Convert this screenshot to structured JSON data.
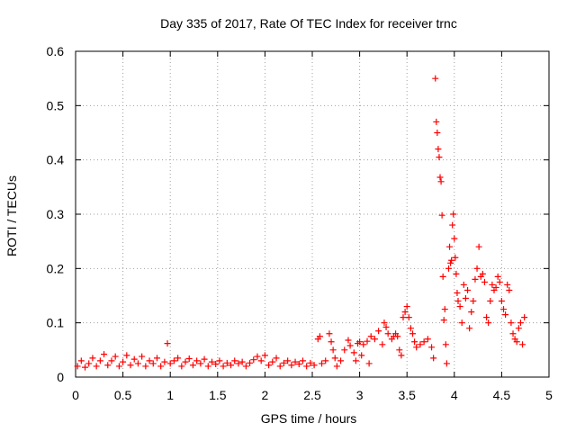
{
  "chart_data": {
    "type": "scatter",
    "title": "Day 335 of 2017, Rate Of TEC Index for receiver trnc",
    "xlabel": "GPS time / hours",
    "ylabel": "ROTI / TECUs",
    "xlim": [
      0,
      5
    ],
    "ylim": [
      0,
      0.6
    ],
    "x_ticks": [
      "0",
      "0.5",
      "1",
      "1.5",
      "2",
      "2.5",
      "3",
      "3.5",
      "4",
      "4.5",
      "5"
    ],
    "y_ticks": [
      "0",
      "0.1",
      "0.2",
      "0.3",
      "0.4",
      "0.5",
      "0.6"
    ],
    "grid": true,
    "marker": "+",
    "series": [
      {
        "name": "ROTI",
        "color": "#ff0000",
        "points": [
          [
            0.02,
            0.02
          ],
          [
            0.06,
            0.03
          ],
          [
            0.1,
            0.018
          ],
          [
            0.14,
            0.025
          ],
          [
            0.18,
            0.035
          ],
          [
            0.22,
            0.02
          ],
          [
            0.26,
            0.03
          ],
          [
            0.3,
            0.042
          ],
          [
            0.34,
            0.022
          ],
          [
            0.38,
            0.03
          ],
          [
            0.42,
            0.038
          ],
          [
            0.46,
            0.02
          ],
          [
            0.5,
            0.028
          ],
          [
            0.54,
            0.04
          ],
          [
            0.58,
            0.022
          ],
          [
            0.62,
            0.033
          ],
          [
            0.66,
            0.025
          ],
          [
            0.7,
            0.038
          ],
          [
            0.74,
            0.02
          ],
          [
            0.78,
            0.03
          ],
          [
            0.82,
            0.025
          ],
          [
            0.86,
            0.035
          ],
          [
            0.9,
            0.02
          ],
          [
            0.94,
            0.028
          ],
          [
            0.97,
            0.062
          ],
          [
            1.0,
            0.025
          ],
          [
            1.04,
            0.03
          ],
          [
            1.08,
            0.035
          ],
          [
            1.12,
            0.02
          ],
          [
            1.16,
            0.028
          ],
          [
            1.2,
            0.034
          ],
          [
            1.24,
            0.022
          ],
          [
            1.28,
            0.03
          ],
          [
            1.32,
            0.025
          ],
          [
            1.36,
            0.033
          ],
          [
            1.4,
            0.02
          ],
          [
            1.44,
            0.028
          ],
          [
            1.48,
            0.024
          ],
          [
            1.52,
            0.03
          ],
          [
            1.56,
            0.02
          ],
          [
            1.6,
            0.026
          ],
          [
            1.64,
            0.022
          ],
          [
            1.68,
            0.03
          ],
          [
            1.72,
            0.025
          ],
          [
            1.76,
            0.028
          ],
          [
            1.8,
            0.02
          ],
          [
            1.84,
            0.026
          ],
          [
            1.88,
            0.032
          ],
          [
            1.92,
            0.038
          ],
          [
            1.96,
            0.03
          ],
          [
            2.0,
            0.04
          ],
          [
            2.04,
            0.022
          ],
          [
            2.08,
            0.028
          ],
          [
            2.12,
            0.035
          ],
          [
            2.16,
            0.02
          ],
          [
            2.2,
            0.026
          ],
          [
            2.24,
            0.03
          ],
          [
            2.28,
            0.022
          ],
          [
            2.32,
            0.028
          ],
          [
            2.36,
            0.024
          ],
          [
            2.4,
            0.03
          ],
          [
            2.44,
            0.02
          ],
          [
            2.48,
            0.026
          ],
          [
            2.52,
            0.022
          ],
          [
            2.56,
            0.07
          ],
          [
            2.58,
            0.075
          ],
          [
            2.6,
            0.025
          ],
          [
            2.64,
            0.03
          ],
          [
            2.68,
            0.08
          ],
          [
            2.7,
            0.065
          ],
          [
            2.72,
            0.05
          ],
          [
            2.74,
            0.035
          ],
          [
            2.76,
            0.02
          ],
          [
            2.8,
            0.03
          ],
          [
            2.84,
            0.05
          ],
          [
            2.88,
            0.068
          ],
          [
            2.9,
            0.058
          ],
          [
            2.94,
            0.045
          ],
          [
            2.96,
            0.03
          ],
          [
            2.98,
            0.062
          ],
          [
            3.0,
            0.065
          ],
          [
            3.02,
            0.04
          ],
          [
            3.04,
            0.06
          ],
          [
            3.08,
            0.066
          ],
          [
            3.1,
            0.025
          ],
          [
            3.12,
            0.075
          ],
          [
            3.16,
            0.07
          ],
          [
            3.2,
            0.085
          ],
          [
            3.24,
            0.06
          ],
          [
            3.26,
            0.1
          ],
          [
            3.28,
            0.092
          ],
          [
            3.3,
            0.08
          ],
          [
            3.34,
            0.07
          ],
          [
            3.36,
            0.075
          ],
          [
            3.38,
            0.08
          ],
          [
            3.4,
            0.075
          ],
          [
            3.42,
            0.05
          ],
          [
            3.44,
            0.04
          ],
          [
            3.46,
            0.11
          ],
          [
            3.48,
            0.12
          ],
          [
            3.5,
            0.13
          ],
          [
            3.52,
            0.11
          ],
          [
            3.54,
            0.09
          ],
          [
            3.56,
            0.08
          ],
          [
            3.58,
            0.065
          ],
          [
            3.6,
            0.055
          ],
          [
            3.64,
            0.06
          ],
          [
            3.68,
            0.065
          ],
          [
            3.72,
            0.07
          ],
          [
            3.76,
            0.055
          ],
          [
            3.78,
            0.035
          ],
          [
            3.8,
            0.55
          ],
          [
            3.81,
            0.47
          ],
          [
            3.82,
            0.45
          ],
          [
            3.83,
            0.42
          ],
          [
            3.84,
            0.405
          ],
          [
            3.85,
            0.368
          ],
          [
            3.86,
            0.36
          ],
          [
            3.87,
            0.298
          ],
          [
            3.88,
            0.185
          ],
          [
            3.89,
            0.105
          ],
          [
            3.9,
            0.125
          ],
          [
            3.91,
            0.06
          ],
          [
            3.92,
            0.025
          ],
          [
            3.94,
            0.2
          ],
          [
            3.95,
            0.24
          ],
          [
            3.96,
            0.21
          ],
          [
            3.97,
            0.215
          ],
          [
            3.98,
            0.28
          ],
          [
            3.99,
            0.3
          ],
          [
            4.0,
            0.255
          ],
          [
            4.01,
            0.22
          ],
          [
            4.02,
            0.19
          ],
          [
            4.03,
            0.155
          ],
          [
            4.04,
            0.14
          ],
          [
            4.06,
            0.13
          ],
          [
            4.08,
            0.1
          ],
          [
            4.1,
            0.17
          ],
          [
            4.12,
            0.145
          ],
          [
            4.14,
            0.16
          ],
          [
            4.16,
            0.09
          ],
          [
            4.18,
            0.12
          ],
          [
            4.2,
            0.14
          ],
          [
            4.22,
            0.18
          ],
          [
            4.24,
            0.2
          ],
          [
            4.26,
            0.24
          ],
          [
            4.28,
            0.185
          ],
          [
            4.3,
            0.19
          ],
          [
            4.32,
            0.175
          ],
          [
            4.34,
            0.11
          ],
          [
            4.36,
            0.1
          ],
          [
            4.38,
            0.14
          ],
          [
            4.4,
            0.17
          ],
          [
            4.42,
            0.16
          ],
          [
            4.44,
            0.165
          ],
          [
            4.46,
            0.185
          ],
          [
            4.48,
            0.175
          ],
          [
            4.5,
            0.14
          ],
          [
            4.52,
            0.125
          ],
          [
            4.54,
            0.115
          ],
          [
            4.56,
            0.17
          ],
          [
            4.58,
            0.16
          ],
          [
            4.6,
            0.1
          ],
          [
            4.62,
            0.08
          ],
          [
            4.64,
            0.07
          ],
          [
            4.66,
            0.065
          ],
          [
            4.68,
            0.09
          ],
          [
            4.7,
            0.1
          ],
          [
            4.72,
            0.06
          ],
          [
            4.74,
            0.11
          ]
        ]
      }
    ]
  }
}
